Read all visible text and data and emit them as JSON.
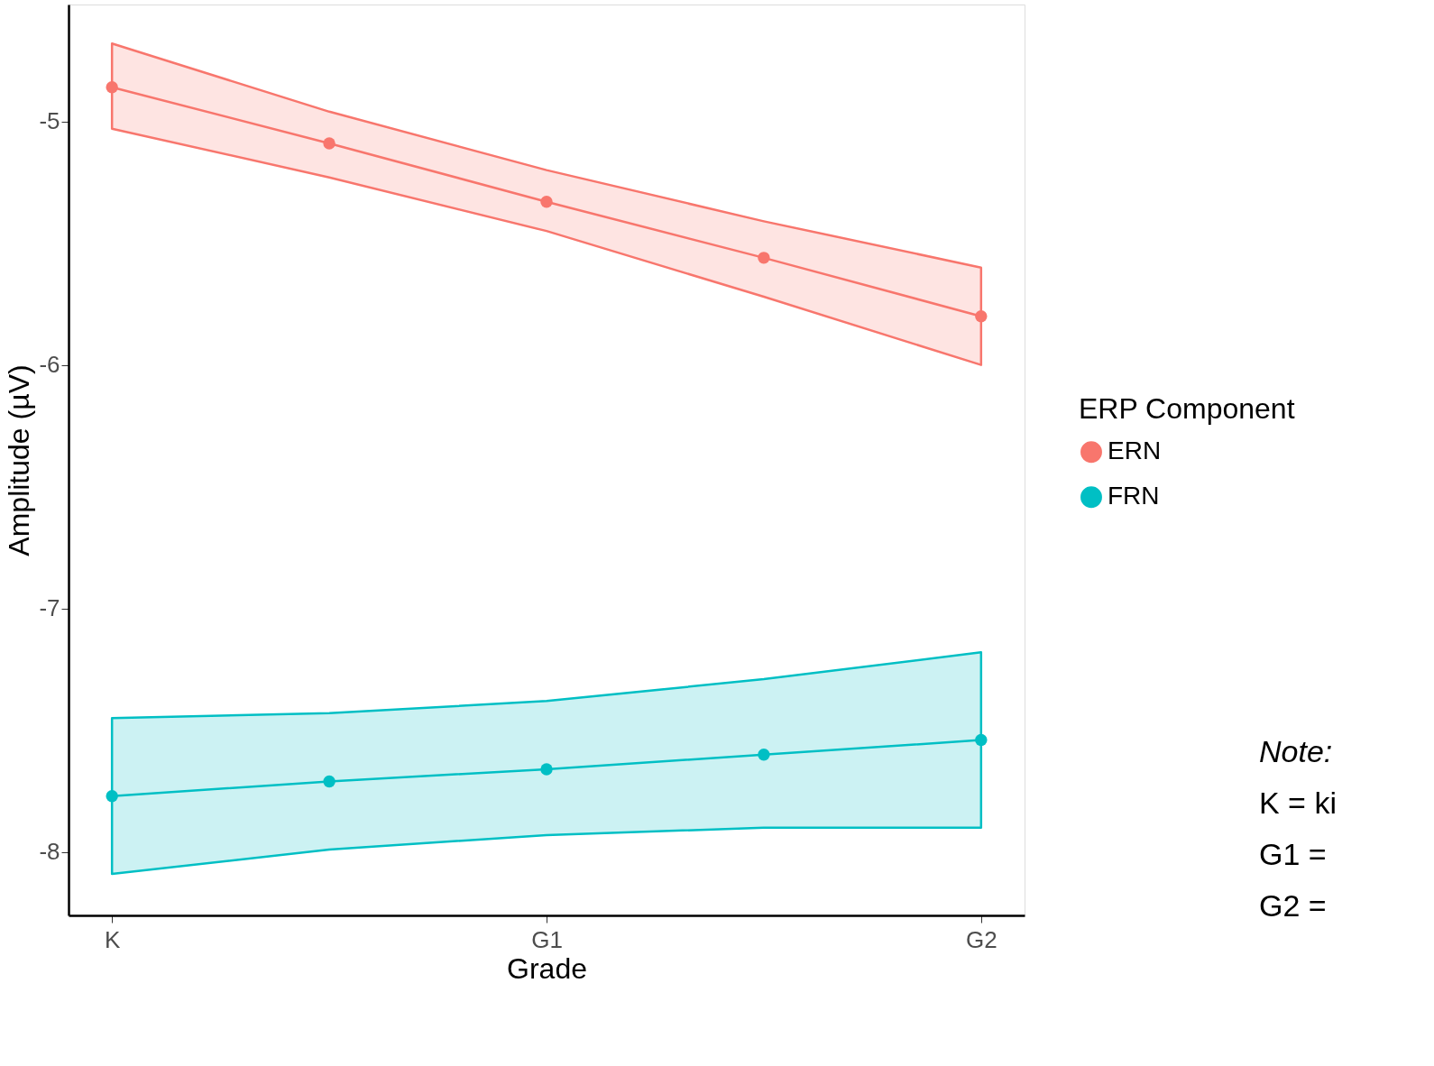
{
  "chart_data": {
    "type": "line",
    "xlabel": "Grade",
    "ylabel": "Amplitude (µV)",
    "legend_title": "ERP Component",
    "categories": [
      "K",
      null,
      "G1",
      null,
      "G2"
    ],
    "ylim": [
      -8.26,
      -4.52
    ],
    "yticks": [
      -8,
      -7,
      -6,
      -5
    ],
    "series": [
      {
        "name": "ERN",
        "color": "#f8766d",
        "values": [
          -4.86,
          -5.09,
          -5.33,
          -5.56,
          -5.8
        ],
        "lower": [
          -5.03,
          -5.23,
          -5.45,
          -5.72,
          -6.0
        ],
        "upper": [
          -4.68,
          -4.96,
          -5.2,
          -5.41,
          -5.6
        ]
      },
      {
        "name": "FRN",
        "color": "#00bfc4",
        "values": [
          -7.77,
          -7.71,
          -7.66,
          -7.6,
          -7.54
        ],
        "lower": [
          -8.09,
          -7.99,
          -7.93,
          -7.9,
          -7.9
        ],
        "upper": [
          -7.45,
          -7.43,
          -7.38,
          -7.29,
          -7.18
        ]
      }
    ],
    "annotations": [
      "Note:",
      "K = ki",
      "G1 =",
      "G2 ="
    ],
    "grid": false,
    "legend": "right",
    "marker": "circle",
    "line_style": "solid"
  }
}
